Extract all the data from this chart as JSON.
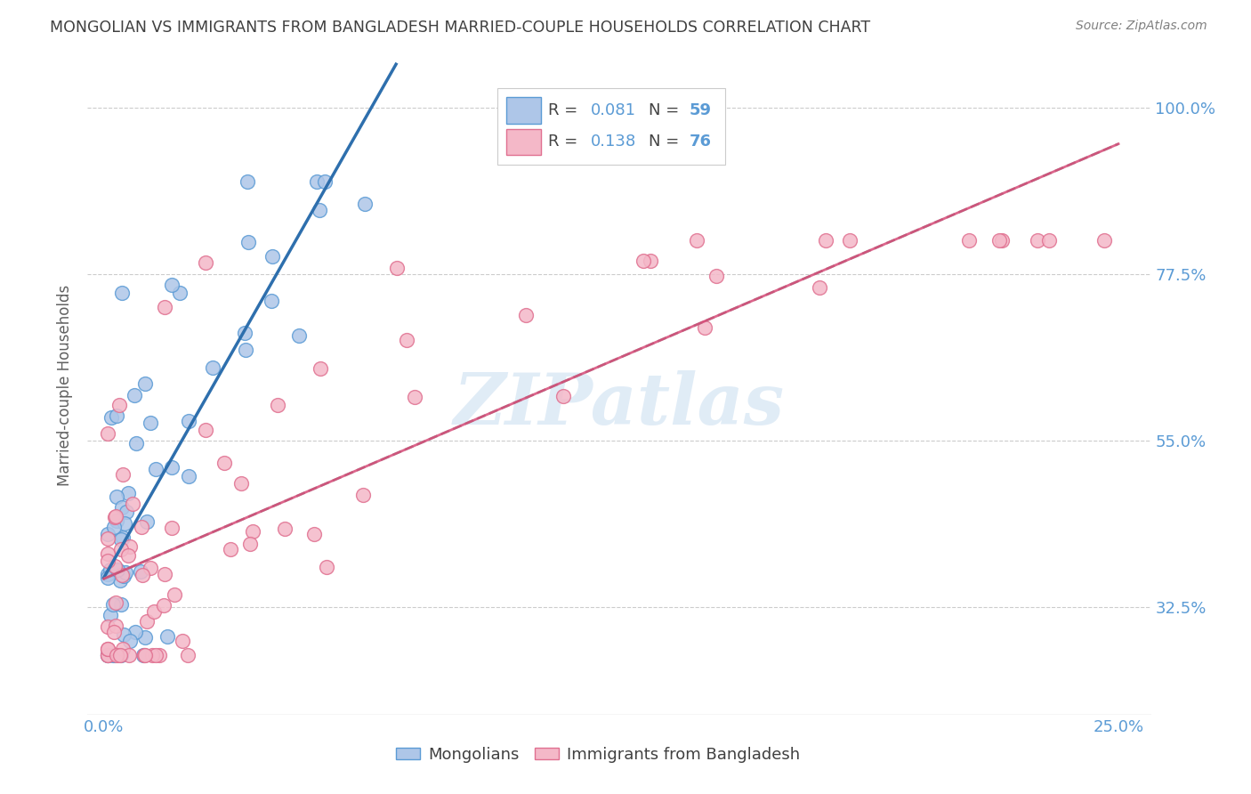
{
  "title": "MONGOLIAN VS IMMIGRANTS FROM BANGLADESH MARRIED-COUPLE HOUSEHOLDS CORRELATION CHART",
  "source": "Source: ZipAtlas.com",
  "ylabel": "Married-couple Households",
  "mongolian_color": "#aec6e8",
  "bangladesh_color": "#f4b8c8",
  "mongolian_edge": "#5b9bd5",
  "bangladesh_edge": "#e07090",
  "trend_mongolian_color": "#2e6fad",
  "trend_bangladesh_color": "#d44070",
  "trend_gray_color": "#aaaaaa",
  "R_mongolian": 0.081,
  "N_mongolian": 59,
  "R_bangladesh": 0.138,
  "N_bangladesh": 76,
  "legend_label_1": "Mongolians",
  "legend_label_2": "Immigrants from Bangladesh",
  "title_color": "#404040",
  "axis_label_color": "#5b9bd5",
  "source_color": "#808080",
  "grid_color": "#cccccc",
  "ytick_vals": [
    0.325,
    0.55,
    0.775,
    1.0
  ],
  "ytick_labels": [
    "32.5%",
    "55.0%",
    "77.5%",
    "100.0%"
  ],
  "xtick_vals": [
    0.0,
    0.05,
    0.1,
    0.15,
    0.2,
    0.25
  ],
  "xtick_labels": [
    "0.0%",
    "",
    "",
    "",
    "",
    "25.0%"
  ],
  "xlim": [
    -0.004,
    0.258
  ],
  "ylim": [
    0.18,
    1.07
  ]
}
